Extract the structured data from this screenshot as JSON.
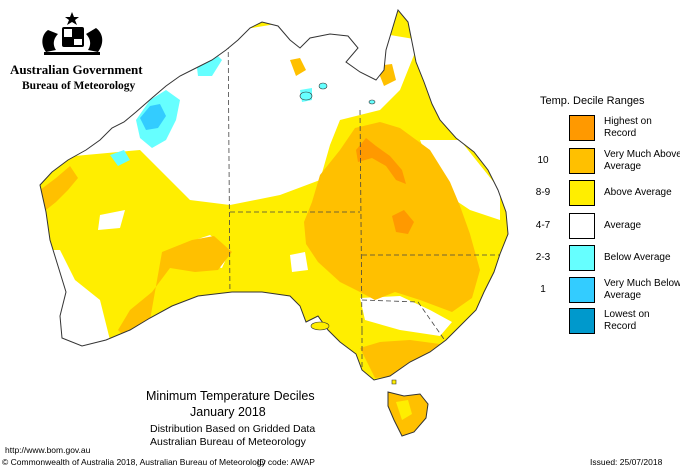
{
  "header": {
    "government": "Australian Government",
    "bureau": "Bureau of Meteorology"
  },
  "legend": {
    "title": "Temp. Decile Ranges",
    "items": [
      {
        "range": "",
        "label": "Highest on Record",
        "color": "#ff9900"
      },
      {
        "range": "10",
        "label": "Very Much Above Average",
        "color": "#ffc000"
      },
      {
        "range": "8-9",
        "label": "Above Average",
        "color": "#ffee00"
      },
      {
        "range": "4-7",
        "label": "Average",
        "color": "#ffffff"
      },
      {
        "range": "2-3",
        "label": "Below Average",
        "color": "#66ffff"
      },
      {
        "range": "1",
        "label": "Very Much Below Average",
        "color": "#33ccff"
      },
      {
        "range": "",
        "label": "Lowest on Record",
        "color": "#0099cc"
      }
    ]
  },
  "caption": {
    "title": "Minimum Temperature Deciles",
    "period": "January 2018",
    "line1": "Distribution Based on Gridded Data",
    "line2": "Australian Bureau of Meteorology"
  },
  "footer": {
    "url": "http://www.bom.gov.au",
    "copyright": "© Commonwealth of Australia 2018, Australian Bureau of Meteorology",
    "id_code": "ID code: AWAP",
    "issued": "Issued: 25/07/2018"
  }
}
